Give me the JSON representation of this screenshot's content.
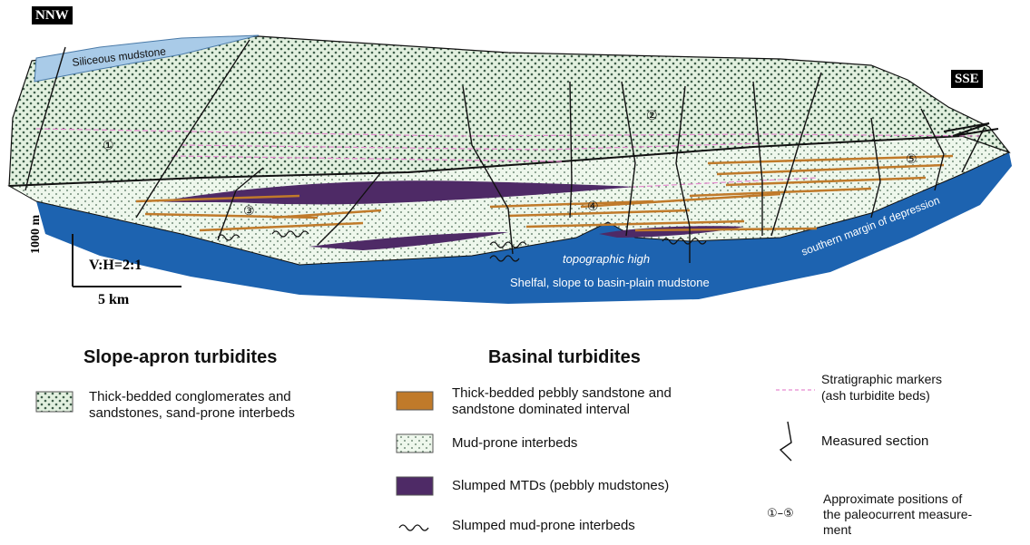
{
  "orientation": {
    "left": "NNW",
    "right": "SSE"
  },
  "units": {
    "siliceous": "Siliceous mudstone",
    "topographic_high": "topographic high",
    "shelfal": "Shelfal, slope to basin-plain mudstone",
    "southern_margin": "southern margin of depression"
  },
  "scale": {
    "vertical": "1000 m",
    "ratio": "V:H=2:1",
    "horizontal": "5 km"
  },
  "markers": [
    "①",
    "②",
    "③",
    "④",
    "⑤"
  ],
  "legend": {
    "slope_title": "Slope-apron turbidites",
    "slope_item": [
      "Thick-bedded conglomerates and",
      "sandstones, sand-prone interbeds"
    ],
    "basinal_title": "Basinal turbidites",
    "basinal_items": {
      "sandstone": [
        "Thick-bedded pebbly sandstone and",
        "sandstone dominated interval"
      ],
      "mud": "Mud-prone interbeds",
      "mtd": "Slumped MTDs (pebbly mudstones)",
      "slumped": "Slumped mud-prone interbeds"
    },
    "strat": [
      "Stratigraphic markers",
      "(ash turbidite beds)"
    ],
    "measured": "Measured section",
    "approx_range": "①–⑤",
    "approx": [
      "Approximate positions of",
      "the paleocurrent measure-",
      "ment"
    ]
  },
  "colors": {
    "blue": "#1d63b0",
    "light_blue": "#a9cbe8",
    "sand": "#c07a2a",
    "mtd": "#4e2a66",
    "dots_bg": "#e8f3e6",
    "marker": "#e68ad0"
  }
}
